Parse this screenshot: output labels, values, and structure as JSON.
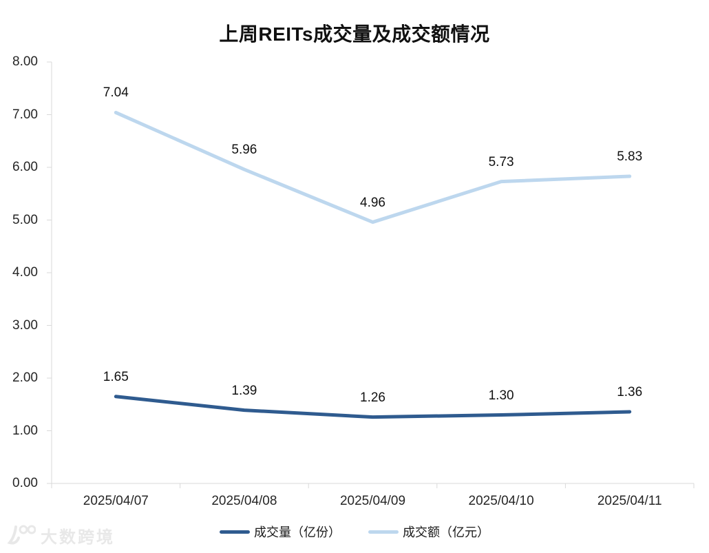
{
  "title": "上周REITs成交量及成交额情况",
  "chart_data": {
    "type": "line",
    "title": "上周REITs成交量及成交额情况",
    "categories": [
      "2025/04/07",
      "2025/04/08",
      "2025/04/09",
      "2025/04/10",
      "2025/04/11"
    ],
    "series": [
      {
        "name": "成交量（亿份）",
        "color": "#2F5B8F",
        "values": [
          1.65,
          1.39,
          1.26,
          1.3,
          1.36
        ]
      },
      {
        "name": "成交额（亿元）",
        "color": "#BDD7EE",
        "values": [
          7.04,
          5.96,
          4.96,
          5.73,
          5.83
        ]
      }
    ],
    "ylim": [
      0,
      8
    ],
    "ytick_step": 1,
    "ytick_labels": [
      "0.00",
      "1.00",
      "2.00",
      "3.00",
      "4.00",
      "5.00",
      "6.00",
      "7.00",
      "8.00"
    ],
    "value_label_format": "0.00",
    "grid": false,
    "legend_position": "bottom",
    "axis_color": "#D9D9D9",
    "text_color": "#262626",
    "data_labels": true
  },
  "watermark": {
    "logo": "100",
    "text": "大数跨境",
    "color": "#E8E8E8"
  }
}
